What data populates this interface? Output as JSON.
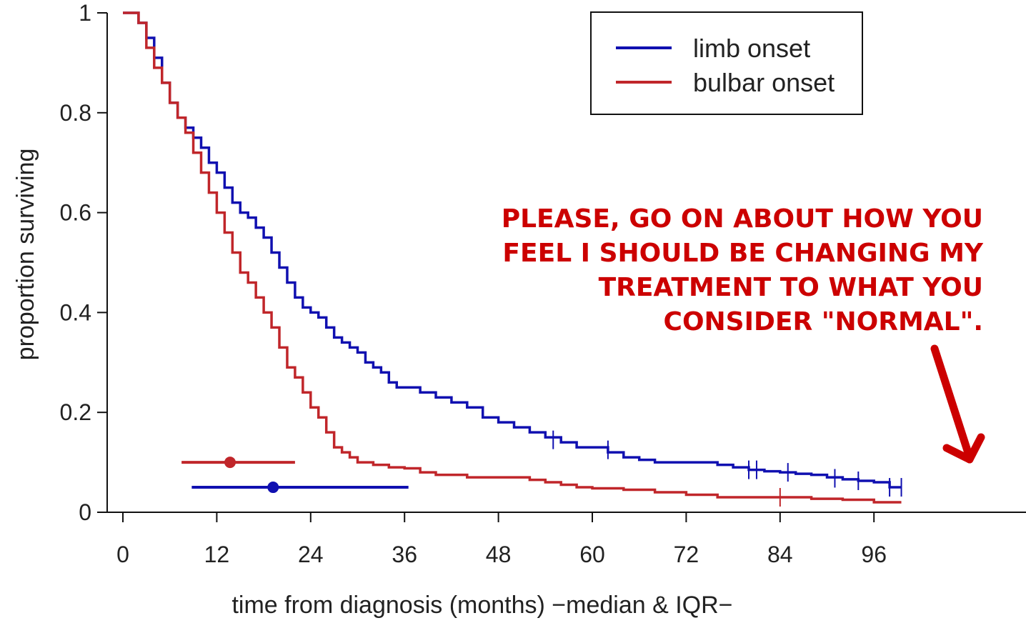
{
  "chart_data": {
    "type": "line",
    "title": "",
    "xlabel": "time from diagnosis (months) −median & IQR−",
    "ylabel": "proportion surviving",
    "xlim": [
      0,
      118
    ],
    "ylim": [
      0,
      1
    ],
    "x_ticks": [
      0,
      12,
      24,
      36,
      48,
      60,
      72,
      84,
      96
    ],
    "x_tick_labels": [
      "0",
      "12",
      "24",
      "36",
      "48",
      "60",
      "72",
      "84",
      "96"
    ],
    "y_ticks": [
      0,
      0.2,
      0.4,
      0.6,
      0.8,
      1
    ],
    "y_tick_labels": [
      "0",
      "0.2",
      "0.4",
      "0.6",
      "0.8",
      "1"
    ],
    "grid": false,
    "legend_position": "top-right",
    "series": [
      {
        "name": "limb onset",
        "color": "#1010b0",
        "x": [
          0,
          1,
          2,
          3,
          4,
          5,
          6,
          7,
          8,
          9,
          10,
          11,
          12,
          13,
          14,
          15,
          16,
          17,
          18,
          19,
          20,
          21,
          22,
          23,
          24,
          25,
          26,
          27,
          28,
          29,
          30,
          31,
          32,
          33,
          34,
          35,
          36,
          38,
          40,
          42,
          44,
          46,
          48,
          50,
          52,
          54,
          56,
          58,
          60,
          62,
          64,
          66,
          68,
          70,
          72,
          74,
          76,
          78,
          80,
          82,
          84,
          86,
          88,
          90,
          92,
          94,
          96,
          98,
          99.5
        ],
        "y": [
          1,
          1,
          0.98,
          0.95,
          0.91,
          0.86,
          0.82,
          0.79,
          0.77,
          0.75,
          0.73,
          0.7,
          0.68,
          0.65,
          0.62,
          0.6,
          0.59,
          0.57,
          0.55,
          0.52,
          0.49,
          0.46,
          0.43,
          0.41,
          0.4,
          0.39,
          0.37,
          0.35,
          0.34,
          0.33,
          0.32,
          0.3,
          0.29,
          0.28,
          0.26,
          0.25,
          0.25,
          0.24,
          0.23,
          0.22,
          0.21,
          0.19,
          0.18,
          0.17,
          0.16,
          0.15,
          0.14,
          0.13,
          0.13,
          0.12,
          0.11,
          0.105,
          0.1,
          0.1,
          0.1,
          0.1,
          0.095,
          0.09,
          0.085,
          0.082,
          0.08,
          0.077,
          0.075,
          0.07,
          0.066,
          0.063,
          0.06,
          0.05,
          0.05
        ]
      },
      {
        "name": "bulbar onset",
        "color": "#c0262a",
        "x": [
          0,
          1,
          2,
          3,
          4,
          5,
          6,
          7,
          8,
          9,
          10,
          11,
          12,
          13,
          14,
          15,
          16,
          17,
          18,
          19,
          20,
          21,
          22,
          23,
          24,
          25,
          26,
          27,
          28,
          29,
          30,
          32,
          34,
          36,
          38,
          40,
          44,
          48,
          52,
          54,
          56,
          58,
          60,
          64,
          68,
          72,
          76,
          80,
          84,
          88,
          92,
          96,
          99.5
        ],
        "y": [
          1,
          1,
          0.98,
          0.93,
          0.89,
          0.86,
          0.82,
          0.79,
          0.76,
          0.72,
          0.68,
          0.64,
          0.6,
          0.56,
          0.52,
          0.48,
          0.46,
          0.43,
          0.4,
          0.37,
          0.33,
          0.29,
          0.27,
          0.24,
          0.21,
          0.19,
          0.16,
          0.13,
          0.12,
          0.11,
          0.1,
          0.095,
          0.09,
          0.088,
          0.08,
          0.075,
          0.07,
          0.07,
          0.065,
          0.06,
          0.055,
          0.05,
          0.048,
          0.045,
          0.04,
          0.035,
          0.03,
          0.03,
          0.03,
          0.027,
          0.025,
          0.02,
          0.02
        ]
      }
    ],
    "censor_marks": [
      {
        "series": "limb onset",
        "x": [
          55,
          62,
          80,
          81,
          85,
          91,
          94,
          98,
          99.5
        ],
        "y": [
          0.145,
          0.125,
          0.085,
          0.085,
          0.08,
          0.068,
          0.063,
          0.05,
          0.05
        ]
      },
      {
        "series": "bulbar onset",
        "x": [
          84
        ],
        "y": [
          0.03
        ]
      }
    ],
    "median_iqr": [
      {
        "series": "bulbar onset",
        "median": 13.7,
        "q1": 7.5,
        "q3": 22,
        "y": 0.1
      },
      {
        "series": "limb onset",
        "median": 19.2,
        "q1": 8.8,
        "q3": 36.5,
        "y": 0.05
      }
    ],
    "annotations": {
      "caption": [
        "PLEASE, GO ON ABOUT HOW YOU",
        "FEEL I SHOULD BE CHANGING MY",
        "TREATMENT TO WHAT YOU",
        "CONSIDER \"NORMAL\"."
      ],
      "caption_color": "#cc0000",
      "arrow": "arrow pointing down-right from caption toward end of curves",
      "arrow_color": "#cc0000"
    }
  }
}
